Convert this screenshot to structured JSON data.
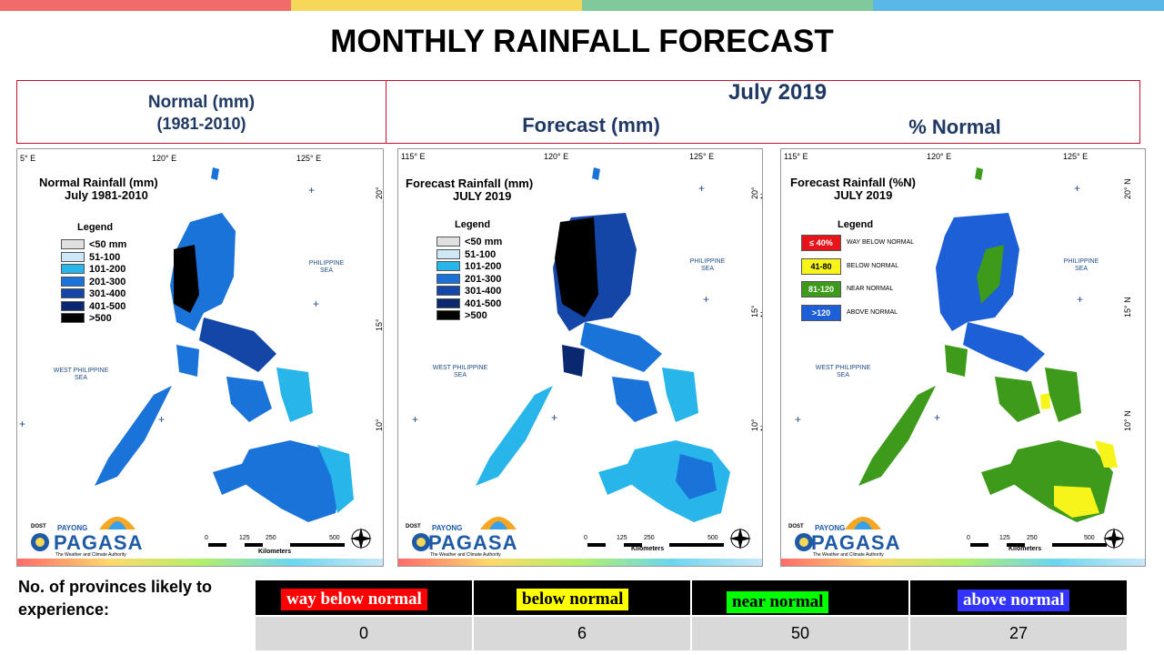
{
  "title": "MONTHLY RAINFALL FORECAST",
  "colors": {
    "stripe": [
      "#f26b6b",
      "#f5d75a",
      "#7fc99a",
      "#5bb8e6"
    ],
    "frame": "#c8102e",
    "heading": "#1f3864"
  },
  "normal_header": {
    "line1": "Normal (mm)",
    "line2": "(1981-2010)"
  },
  "month_header": "July 2019",
  "forecast_header": "Forecast (mm)",
  "percent_header": "% Normal",
  "map_common": {
    "lon_labels": [
      "115° E",
      "120° E",
      "125° E"
    ],
    "lat_labels": [
      "20° N",
      "15° N",
      "10° N"
    ],
    "philippine_sea": [
      "PHILIPPINE",
      "SEA"
    ],
    "west_philippine_sea": [
      "WEST PHILIPPINE",
      "SEA"
    ],
    "scale_ticks": [
      "0",
      "125",
      "250",
      "500"
    ],
    "scale_unit": "Kilometers",
    "logo": {
      "dost": "DOST",
      "payong": "PAYONG",
      "pagasa": "PAGASA",
      "tagline": "The Weather and Climate Authority"
    },
    "legend_title": "Legend"
  },
  "normal_map": {
    "left_lon_label": "5° E",
    "title_line1": "Normal Rainfall (mm)",
    "title_line2": "July 1981-2010",
    "legend": [
      {
        "label": "<50 mm",
        "color": "#e0e0e0"
      },
      {
        "label": "51-100",
        "color": "#cfe8f7"
      },
      {
        "label": "101-200",
        "color": "#27b5ea"
      },
      {
        "label": "201-300",
        "color": "#1a73d9"
      },
      {
        "label": "301-400",
        "color": "#1446a8"
      },
      {
        "label": "401-500",
        "color": "#0a2870"
      },
      {
        "label": ">500",
        "color": "#000000"
      }
    ]
  },
  "forecast_map": {
    "title_line1": "Forecast Rainfall (mm)",
    "title_line2": "JULY 2019",
    "legend": [
      {
        "label": "<50 mm",
        "color": "#e0e0e0"
      },
      {
        "label": "51-100",
        "color": "#cfe8f7"
      },
      {
        "label": "101-200",
        "color": "#27b5ea"
      },
      {
        "label": "201-300",
        "color": "#1a73d9"
      },
      {
        "label": "301-400",
        "color": "#1446a8"
      },
      {
        "label": "401-500",
        "color": "#0a2870"
      },
      {
        "label": ">500",
        "color": "#000000"
      }
    ]
  },
  "percent_map": {
    "title_line1": "Forecast Rainfall (%N)",
    "title_line2": "JULY 2019",
    "legend": [
      {
        "label": "≤ 40%",
        "text": "WAY BELOW NORMAL",
        "color": "#e8141b",
        "fg": "#ffffff"
      },
      {
        "label": "41-80",
        "text": "BELOW NORMAL",
        "color": "#f7f41b",
        "fg": "#000000"
      },
      {
        "label": "81-120",
        "text": "NEAR NORMAL",
        "color": "#3d9a1a",
        "fg": "#ffffff"
      },
      {
        "label": ">120",
        "text": "ABOVE NORMAL",
        "color": "#1d5fd6",
        "fg": "#ffffff"
      }
    ]
  },
  "provinces": {
    "caption": "No. of provinces likely to experience:",
    "categories": [
      {
        "label": "way below normal",
        "count": "0",
        "bg": "#ff0000",
        "fg": "#ffffff"
      },
      {
        "label": "below normal",
        "count": "6",
        "bg": "#ffff00",
        "fg": "#000000"
      },
      {
        "label": "near normal",
        "count": "50",
        "bg": "#00ff00",
        "fg": "#000000"
      },
      {
        "label": "above normal",
        "count": "27",
        "bg": "#3333ff",
        "fg": "#ffffff"
      }
    ]
  }
}
